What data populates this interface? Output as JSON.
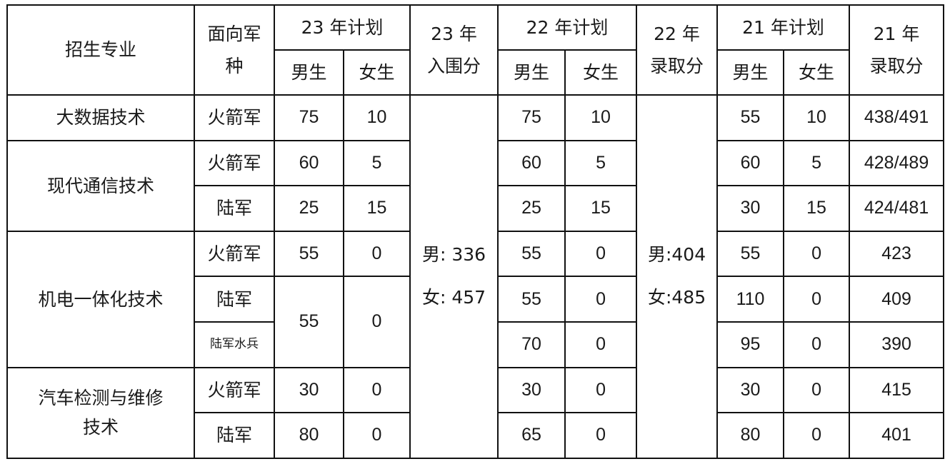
{
  "header": {
    "major": "招生专业",
    "service_line1": "面向军",
    "service_line2": "种",
    "plan23": "23 年计划",
    "score23_line1": "23 年",
    "score23_line2": "入围分",
    "plan22": "22 年计划",
    "score22_line1": "22 年",
    "score22_line2": "录取分",
    "plan21": "21 年计划",
    "score21_line1": "21 年",
    "score21_line2": "录取分",
    "male": "男生",
    "female": "女生"
  },
  "score23": {
    "male": "男: 336",
    "female": "女: 457"
  },
  "score22": {
    "male": "男:404",
    "female": "女:485"
  },
  "majors": [
    {
      "name": "大数据技术"
    },
    {
      "name": "现代通信技术"
    },
    {
      "name": "机电一体化技术"
    },
    {
      "name_line1": "汽车检测与维修",
      "name_line2": "技术"
    }
  ],
  "rows": [
    {
      "service": "火箭军",
      "p23m": "75",
      "p23f": "10",
      "p22m": "75",
      "p22f": "10",
      "p21m": "55",
      "p21f": "10",
      "s21": "438/491"
    },
    {
      "service": "火箭军",
      "p23m": "60",
      "p23f": "5",
      "p22m": "60",
      "p22f": "5",
      "p21m": "60",
      "p21f": "5",
      "s21": "428/489"
    },
    {
      "service": "陆军",
      "p23m": "25",
      "p23f": "15",
      "p22m": "25",
      "p22f": "15",
      "p21m": "30",
      "p21f": "15",
      "s21": "424/481"
    },
    {
      "service": "火箭军",
      "p23m": "55",
      "p23f": "0",
      "p22m": "55",
      "p22f": "0",
      "p21m": "55",
      "p21f": "0",
      "s21": "423"
    },
    {
      "service": "陆军",
      "p23m": "55",
      "p23f": "0",
      "p22m": "55",
      "p22f": "0",
      "p21m": "110",
      "p21f": "0",
      "s21": "409"
    },
    {
      "service": "陆军水兵",
      "p22m": "70",
      "p22f": "0",
      "p21m": "95",
      "p21f": "0",
      "s21": "390"
    },
    {
      "service": "火箭军",
      "p23m": "30",
      "p23f": "0",
      "p22m": "30",
      "p22f": "0",
      "p21m": "30",
      "p21f": "0",
      "s21": "415"
    },
    {
      "service": "陆军",
      "p23m": "80",
      "p23f": "0",
      "p22m": "65",
      "p22f": "0",
      "p21m": "80",
      "p21f": "0",
      "s21": "401"
    }
  ]
}
